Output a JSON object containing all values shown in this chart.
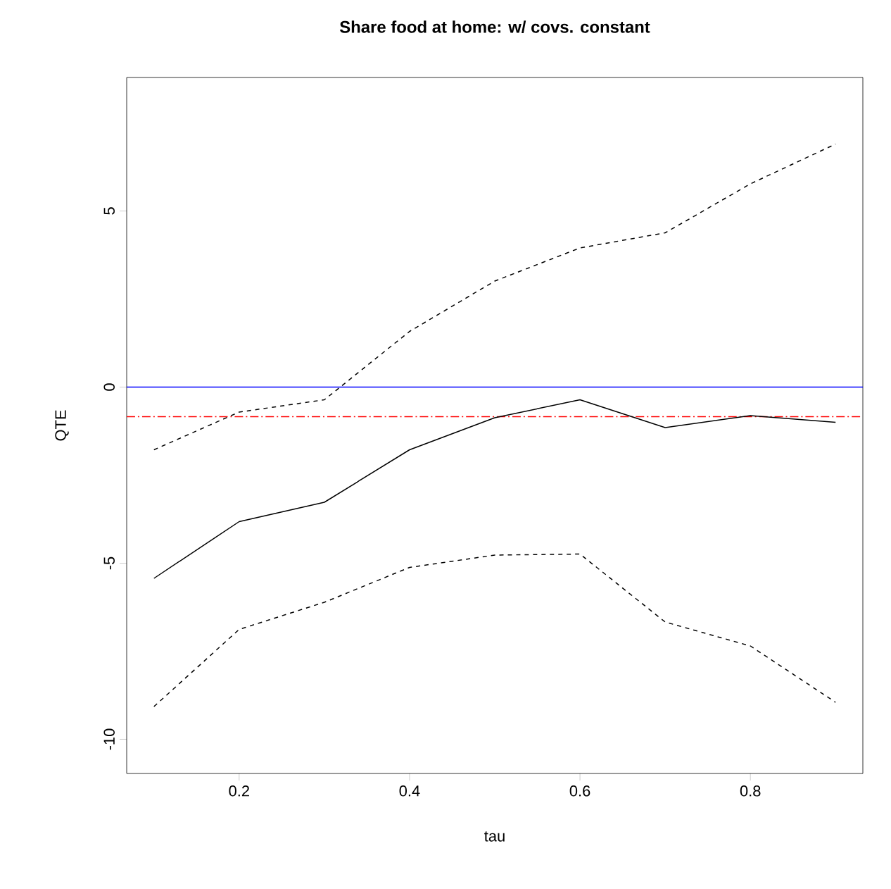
{
  "chart_data": {
    "type": "line",
    "title": "Share food at home: w/ covs. constant",
    "xlabel": "tau",
    "ylabel": "QTE",
    "x": [
      0.1,
      0.2,
      0.3,
      0.4,
      0.5,
      0.6,
      0.7,
      0.8,
      0.9
    ],
    "series": [
      {
        "color": "#000000",
        "line_style": "solid",
        "values": [
          -5.43,
          -3.82,
          -3.27,
          -1.78,
          -0.87,
          -0.36,
          -1.15,
          -0.81,
          -1.0
        ]
      },
      {
        "color": "#000000",
        "line_style": "dashed",
        "values": [
          -1.78,
          -0.71,
          -0.36,
          1.58,
          3.01,
          3.95,
          4.38,
          5.77,
          6.9
        ]
      },
      {
        "color": "#000000",
        "line_style": "dashed",
        "values": [
          -9.07,
          -6.88,
          -6.11,
          -5.12,
          -4.77,
          -4.74,
          -6.67,
          -7.35,
          -8.95
        ]
      }
    ],
    "ref_lines": [
      {
        "axis": "y",
        "value": 0,
        "color": "#0000ff",
        "line_style": "solid"
      },
      {
        "axis": "y",
        "value": -0.84,
        "color": "#ff0000",
        "line_style": "dashdot"
      }
    ],
    "xlim": [
      0.068,
      0.932
    ],
    "ylim": [
      -10.97,
      8.79
    ],
    "xticks": [
      0.2,
      0.4,
      0.6,
      0.8
    ],
    "yticks": [
      -10,
      -5,
      0,
      5
    ],
    "grid": false,
    "marker": "none"
  }
}
